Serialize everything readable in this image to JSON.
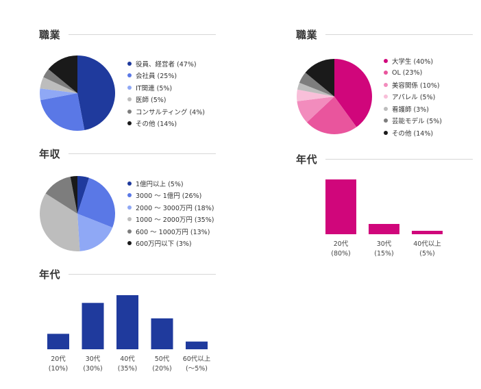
{
  "colors": {
    "navy": "#1f3a9d",
    "magenta": "#d0067b"
  },
  "chart_data": [
    {
      "type": "pie",
      "title": "職業",
      "series": [
        {
          "name": "役員、経営者",
          "label": "役員、経営者 (47%)",
          "value": 47,
          "color": "#1f3a9d"
        },
        {
          "name": "会社員",
          "label": "会社員 (25%)",
          "value": 25,
          "color": "#5a78e6"
        },
        {
          "name": "IT関連",
          "label": "IT関連 (5%)",
          "value": 5,
          "color": "#8fa8f5"
        },
        {
          "name": "医師",
          "label": "医師 (5%)",
          "value": 5,
          "color": "#bdbdbd"
        },
        {
          "name": "コンサルティング",
          "label": "コンサルティング (4%)",
          "value": 4,
          "color": "#7d7d7d"
        },
        {
          "name": "その他",
          "label": "その他 (14%)",
          "value": 14,
          "color": "#1a1a1a"
        }
      ],
      "legend": "right"
    },
    {
      "type": "pie",
      "title": "年収",
      "series": [
        {
          "name": "1億円以上",
          "label": "1億円以上 (5%)",
          "value": 5,
          "color": "#1f3a9d"
        },
        {
          "name": "3000 ～ 1億円",
          "label": "3000 ～ 1億円 (26%)",
          "value": 26,
          "color": "#5a78e6"
        },
        {
          "name": "2000 ～ 3000万円",
          "label": "2000 ～ 3000万円 (18%)",
          "value": 18,
          "color": "#8fa8f5"
        },
        {
          "name": "1000 ～ 2000万円",
          "label": "1000 ～ 2000万円 (35%)",
          "value": 35,
          "color": "#bdbdbd"
        },
        {
          "name": "600 ～ 1000万円",
          "label": "600 ～ 1000万円 (13%)",
          "value": 13,
          "color": "#7d7d7d"
        },
        {
          "name": "600万円以下",
          "label": "600万円以下 (3%)",
          "value": 3,
          "color": "#1a1a1a"
        }
      ],
      "legend": "right"
    },
    {
      "type": "bar",
      "title": "年代",
      "categories": [
        "20代",
        "30代",
        "40代",
        "50代",
        "60代以上"
      ],
      "value_labels": [
        "(10%)",
        "(30%)",
        "(35%)",
        "(20%)",
        "(～5%)"
      ],
      "values": [
        10,
        30,
        35,
        20,
        5
      ],
      "color": "#1f3a9d",
      "grid": false
    },
    {
      "type": "pie",
      "title": "職業",
      "series": [
        {
          "name": "大学生",
          "label": "大学生 (40%)",
          "value": 40,
          "color": "#d0067b"
        },
        {
          "name": "OL",
          "label": "OL (23%)",
          "value": 23,
          "color": "#e9559d"
        },
        {
          "name": "美容関係",
          "label": "美容関係 (10%)",
          "value": 10,
          "color": "#f28cbd"
        },
        {
          "name": "アパレル",
          "label": "アパレル (5%)",
          "value": 5,
          "color": "#f8bfd9"
        },
        {
          "name": "看護師",
          "label": "看護師 (3%)",
          "value": 3,
          "color": "#bdbdbd"
        },
        {
          "name": "芸能モデル",
          "label": "芸能モデル (5%)",
          "value": 5,
          "color": "#7d7d7d"
        },
        {
          "name": "その他",
          "label": "その他 (14%)",
          "value": 14,
          "color": "#1a1a1a"
        }
      ],
      "legend": "right"
    },
    {
      "type": "bar",
      "title": "年代",
      "categories": [
        "20代",
        "30代",
        "40代以上"
      ],
      "value_labels": [
        "(80%)",
        "(15%)",
        "(5%)"
      ],
      "values": [
        80,
        15,
        5
      ],
      "color": "#d0067b",
      "grid": false
    }
  ]
}
